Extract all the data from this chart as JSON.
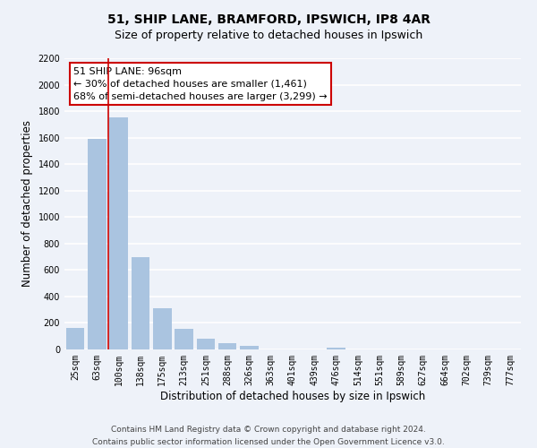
{
  "title": "51, SHIP LANE, BRAMFORD, IPSWICH, IP8 4AR",
  "subtitle": "Size of property relative to detached houses in Ipswich",
  "xlabel": "Distribution of detached houses by size in Ipswich",
  "ylabel": "Number of detached properties",
  "bar_labels": [
    "25sqm",
    "63sqm",
    "100sqm",
    "138sqm",
    "175sqm",
    "213sqm",
    "251sqm",
    "288sqm",
    "326sqm",
    "363sqm",
    "401sqm",
    "439sqm",
    "476sqm",
    "514sqm",
    "551sqm",
    "589sqm",
    "627sqm",
    "664sqm",
    "702sqm",
    "739sqm",
    "777sqm"
  ],
  "bar_values": [
    160,
    1590,
    1750,
    700,
    310,
    155,
    80,
    45,
    25,
    0,
    0,
    0,
    15,
    0,
    0,
    0,
    0,
    0,
    0,
    0,
    0
  ],
  "bar_color": "#aac4e0",
  "highlight_color": "#cc0000",
  "vline_x_index": 2,
  "ylim": [
    0,
    2200
  ],
  "yticks": [
    0,
    200,
    400,
    600,
    800,
    1000,
    1200,
    1400,
    1600,
    1800,
    2000,
    2200
  ],
  "annotation_title": "51 SHIP LANE: 96sqm",
  "annotation_line1": "← 30% of detached houses are smaller (1,461)",
  "annotation_line2": "68% of semi-detached houses are larger (3,299) →",
  "annotation_box_color": "#ffffff",
  "annotation_box_edge": "#cc0000",
  "footer_line1": "Contains HM Land Registry data © Crown copyright and database right 2024.",
  "footer_line2": "Contains public sector information licensed under the Open Government Licence v3.0.",
  "background_color": "#eef2f9",
  "grid_color": "#ffffff",
  "title_fontsize": 10,
  "subtitle_fontsize": 9,
  "tick_fontsize": 7,
  "ylabel_fontsize": 8.5,
  "xlabel_fontsize": 8.5,
  "footer_fontsize": 6.5,
  "annotation_fontsize": 8
}
